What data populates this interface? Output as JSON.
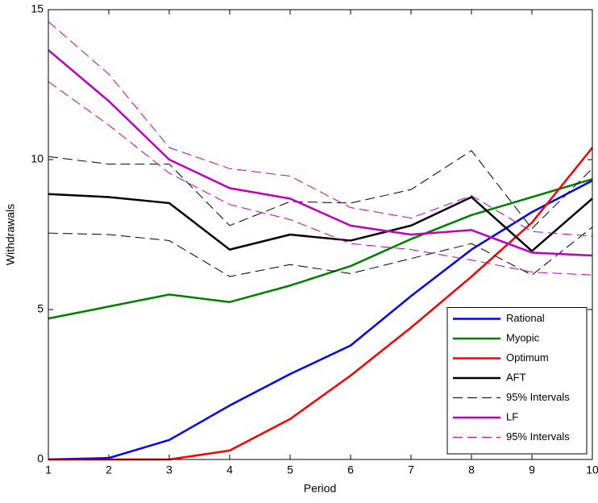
{
  "chart_data": {
    "type": "line",
    "x_label": "Period",
    "y_label": "Withdrawals",
    "x": [
      1,
      2,
      3,
      4,
      5,
      6,
      7,
      8,
      9,
      10
    ],
    "xlim": [
      1,
      10
    ],
    "xticks": [
      1,
      2,
      3,
      4,
      5,
      6,
      7,
      8,
      9,
      10
    ],
    "ylim": [
      0,
      15
    ],
    "yticks": [
      0,
      5,
      10,
      15
    ],
    "legend": "lower right",
    "series": [
      {
        "name": "Rational",
        "color": "#0000ff",
        "width": 2.5,
        "dash": false,
        "values": [
          0,
          0.05,
          0.65,
          1.8,
          2.85,
          3.8,
          5.45,
          7.0,
          8.25,
          9.3
        ]
      },
      {
        "name": "Myopic",
        "color": "#008000",
        "width": 2.5,
        "dash": false,
        "values": [
          4.7,
          5.1,
          5.5,
          5.25,
          5.8,
          6.45,
          7.35,
          8.15,
          8.75,
          9.35
        ]
      },
      {
        "name": "Optimum",
        "color": "#ff0000",
        "width": 2.5,
        "dash": false,
        "values": [
          0,
          0,
          0,
          0.3,
          1.35,
          2.8,
          4.4,
          6.1,
          7.9,
          10.4
        ]
      },
      {
        "name": "AFT",
        "color": "#000000",
        "width": 2.5,
        "dash": false,
        "values": [
          8.85,
          8.75,
          8.55,
          7.0,
          7.5,
          7.3,
          7.8,
          8.75,
          6.95,
          8.7
        ]
      },
      {
        "name": "95% Intervals",
        "color": "#000000",
        "width": 1,
        "dash": true,
        "values": [
          10.1,
          9.85,
          9.85,
          7.8,
          8.6,
          8.55,
          9.0,
          10.3,
          7.7,
          9.7
        ]
      },
      {
        "color": "#000000",
        "width": 1,
        "dash": true,
        "values": [
          7.55,
          7.5,
          7.3,
          6.1,
          6.5,
          6.2,
          6.7,
          7.2,
          6.15,
          7.75
        ]
      },
      {
        "name": "LF",
        "color": "#bf00bf",
        "width": 2.5,
        "dash": false,
        "values": [
          13.65,
          11.95,
          10.0,
          9.05,
          8.7,
          7.8,
          7.5,
          7.65,
          6.9,
          6.8
        ]
      },
      {
        "name": "95% Intervals",
        "color": "#bf00bf",
        "width": 1,
        "dash": true,
        "values": [
          14.6,
          12.85,
          10.4,
          9.7,
          9.45,
          8.4,
          8.05,
          8.8,
          7.6,
          7.45
        ]
      },
      {
        "color": "#bf00bf",
        "width": 1,
        "dash": true,
        "values": [
          12.6,
          11.15,
          9.55,
          8.5,
          8.0,
          7.2,
          7.0,
          6.65,
          6.25,
          6.15
        ]
      }
    ]
  }
}
